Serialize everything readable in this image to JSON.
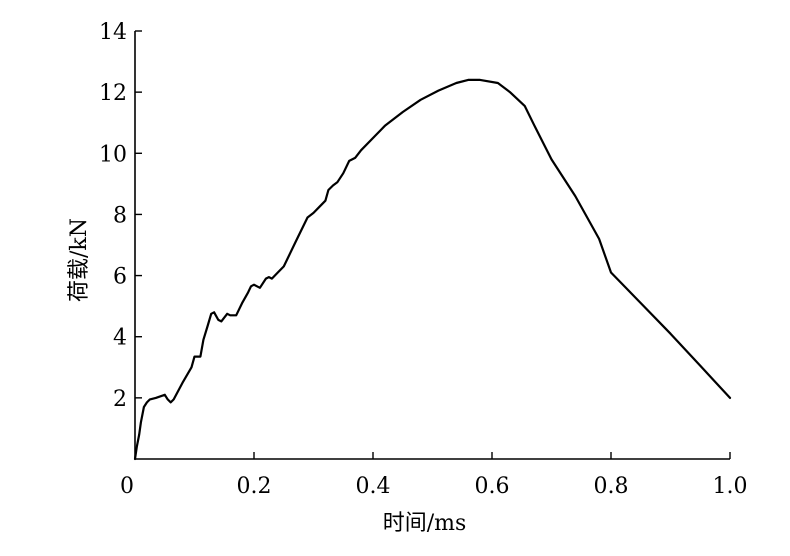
{
  "chart_data": {
    "type": "line",
    "xlabel": "时间/ms",
    "ylabel": "荷载/kN",
    "xlim": [
      0,
      1.0
    ],
    "ylim": [
      0,
      14
    ],
    "x_ticks": [
      "0",
      "0.2",
      "0.4",
      "0.6",
      "0.8",
      "1.0"
    ],
    "x_tick_values": [
      0,
      0.2,
      0.4,
      0.6,
      0.8,
      1.0
    ],
    "y_ticks": [
      "2",
      "4",
      "6",
      "8",
      "10",
      "12",
      "14"
    ],
    "y_tick_values": [
      2,
      4,
      6,
      8,
      10,
      12,
      14
    ],
    "grid": false,
    "series": [
      {
        "color": "#000000",
        "points": [
          [
            0.0,
            0.0
          ],
          [
            0.003,
            0.4
          ],
          [
            0.007,
            0.8
          ],
          [
            0.01,
            1.2
          ],
          [
            0.015,
            1.7
          ],
          [
            0.02,
            1.85
          ],
          [
            0.025,
            1.95
          ],
          [
            0.035,
            2.0
          ],
          [
            0.05,
            2.1
          ],
          [
            0.055,
            1.95
          ],
          [
            0.06,
            1.85
          ],
          [
            0.065,
            1.95
          ],
          [
            0.08,
            2.5
          ],
          [
            0.095,
            3.0
          ],
          [
            0.1,
            3.35
          ],
          [
            0.11,
            3.35
          ],
          [
            0.115,
            3.9
          ],
          [
            0.122,
            4.35
          ],
          [
            0.128,
            4.75
          ],
          [
            0.133,
            4.8
          ],
          [
            0.14,
            4.55
          ],
          [
            0.145,
            4.5
          ],
          [
            0.155,
            4.75
          ],
          [
            0.16,
            4.7
          ],
          [
            0.17,
            4.7
          ],
          [
            0.18,
            5.1
          ],
          [
            0.19,
            5.45
          ],
          [
            0.195,
            5.65
          ],
          [
            0.2,
            5.7
          ],
          [
            0.205,
            5.65
          ],
          [
            0.21,
            5.6
          ],
          [
            0.22,
            5.9
          ],
          [
            0.225,
            5.95
          ],
          [
            0.23,
            5.9
          ],
          [
            0.24,
            6.1
          ],
          [
            0.25,
            6.3
          ],
          [
            0.27,
            7.1
          ],
          [
            0.29,
            7.9
          ],
          [
            0.3,
            8.05
          ],
          [
            0.31,
            8.25
          ],
          [
            0.32,
            8.45
          ],
          [
            0.325,
            8.8
          ],
          [
            0.333,
            8.95
          ],
          [
            0.34,
            9.05
          ],
          [
            0.35,
            9.35
          ],
          [
            0.36,
            9.75
          ],
          [
            0.37,
            9.85
          ],
          [
            0.38,
            10.1
          ],
          [
            0.4,
            10.5
          ],
          [
            0.42,
            10.9
          ],
          [
            0.45,
            11.35
          ],
          [
            0.48,
            11.75
          ],
          [
            0.51,
            12.05
          ],
          [
            0.54,
            12.3
          ],
          [
            0.56,
            12.4
          ],
          [
            0.58,
            12.4
          ],
          [
            0.61,
            12.3
          ],
          [
            0.63,
            12.0
          ],
          [
            0.655,
            11.55
          ],
          [
            0.67,
            10.95
          ],
          [
            0.7,
            9.8
          ],
          [
            0.74,
            8.6
          ],
          [
            0.78,
            7.2
          ],
          [
            0.8,
            6.1
          ],
          [
            0.85,
            5.1
          ],
          [
            0.9,
            4.1
          ],
          [
            0.95,
            3.05
          ],
          [
            1.0,
            2.0
          ]
        ]
      }
    ]
  }
}
